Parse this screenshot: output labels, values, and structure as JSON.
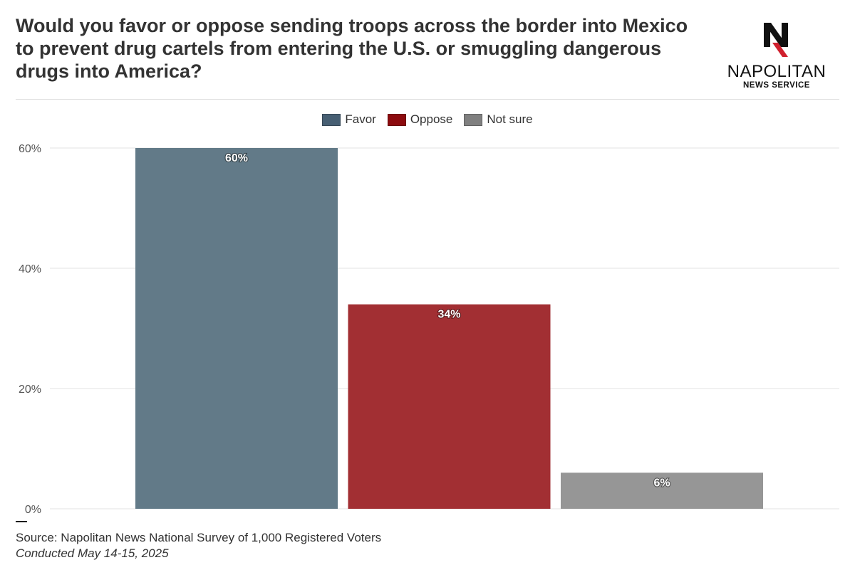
{
  "header": {
    "title": "Would you favor or oppose sending troops across the border into Mexico to prevent drug cartels from entering the U.S. or smuggling dangerous drugs into America?"
  },
  "logo": {
    "mark": "N",
    "name": "NAPOLITAN",
    "subtitle": "NEWS SERVICE",
    "icon": "napolitan-n-logo-icon",
    "accent_color": "#d0202e"
  },
  "legend": [
    {
      "label": "Favor",
      "color": "#475f73"
    },
    {
      "label": "Oppose",
      "color": "#8c0b0e"
    },
    {
      "label": "Not sure",
      "color": "#808080"
    }
  ],
  "chart_data": {
    "type": "bar",
    "categories": [
      "Favor",
      "Oppose",
      "Not sure"
    ],
    "values": [
      60,
      34,
      6
    ],
    "data_labels": [
      "60%",
      "34%",
      "6%"
    ],
    "colors": [
      "#627a88",
      "#a22f33",
      "#969696"
    ],
    "y_ticks": [
      0,
      20,
      40,
      60
    ],
    "y_tick_labels": [
      "0%",
      "20%",
      "40%",
      "60%"
    ],
    "ylim": [
      0,
      60
    ],
    "grid": true,
    "legend_position": "top-center"
  },
  "footer": {
    "source": "Source: Napolitan News National Survey of 1,000 Registered Voters",
    "date": "Conducted May 14-15, 2025"
  }
}
